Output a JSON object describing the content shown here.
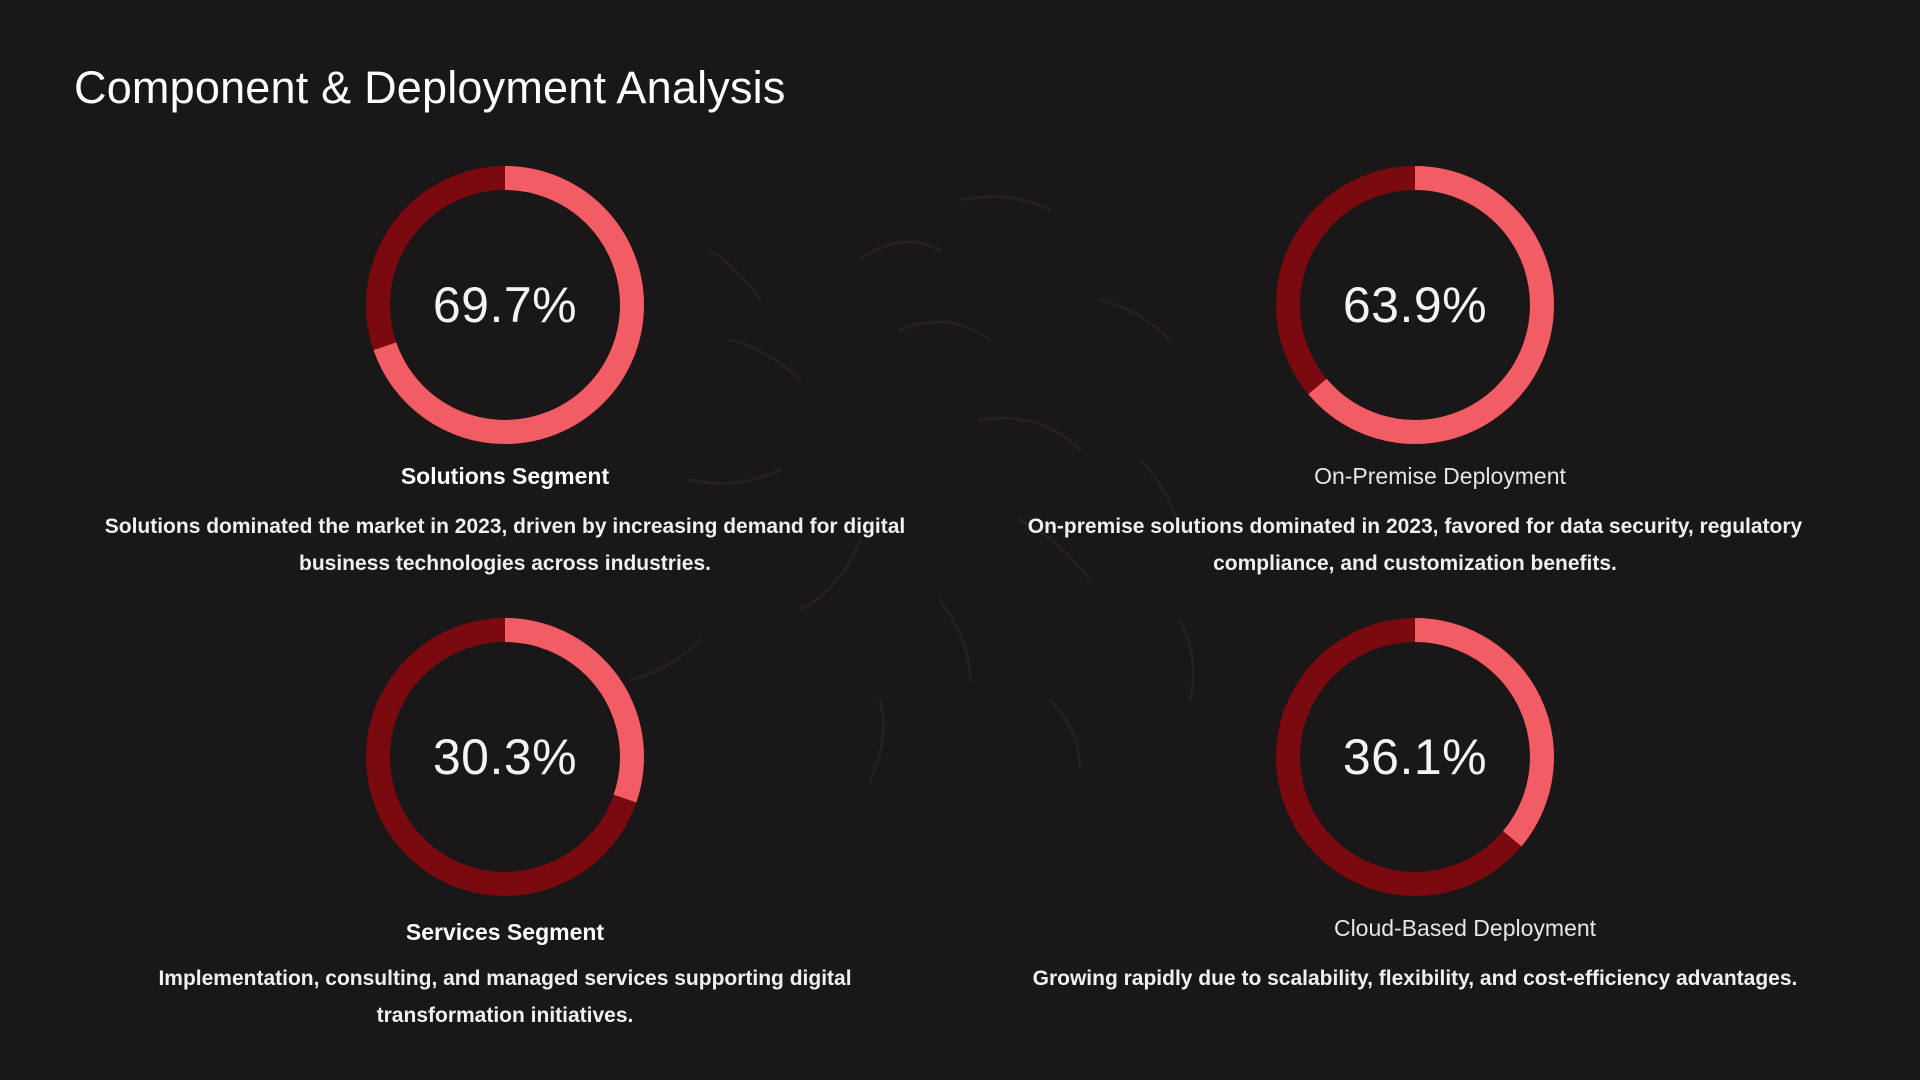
{
  "title": "Component & Deployment Analysis",
  "colors": {
    "background": "#191718",
    "highlight": "#f25c64",
    "remainder": "#7a0a10",
    "text": "#ffffff"
  },
  "panels": [
    {
      "value": "69.7%",
      "label": "Solutions Segment",
      "description": "Solutions dominated the market in 2023, driven by increasing demand for digital business technologies across industries."
    },
    {
      "value": "63.9%",
      "label": "On-Premise Deployment",
      "description": "On-premise solutions dominated in 2023, favored for data security, regulatory compliance, and customization benefits."
    },
    {
      "value": "30.3%",
      "label": "Services Segment",
      "description": "Implementation, consulting, and managed services supporting digital transformation initiatives."
    },
    {
      "value": "36.1%",
      "label": "Cloud-Based Deployment",
      "description": "Growing rapidly due to scalability, flexibility, and cost-efficiency advantages."
    }
  ],
  "chart_data": [
    {
      "type": "pie",
      "title": "",
      "categories": [
        "Solutions Segment",
        ""
      ],
      "values": [
        69.7,
        30.3
      ]
    },
    {
      "type": "pie",
      "title": "",
      "categories": [
        "On-Premise Deployment",
        ""
      ],
      "values": [
        63.9,
        36.1
      ]
    },
    {
      "type": "pie",
      "title": "",
      "categories": [
        "Services Segment",
        ""
      ],
      "values": [
        30.3,
        69.7
      ]
    },
    {
      "type": "pie",
      "title": "",
      "categories": [
        "Cloud-Based Deployment",
        ""
      ],
      "values": [
        36.1,
        63.9
      ]
    }
  ]
}
